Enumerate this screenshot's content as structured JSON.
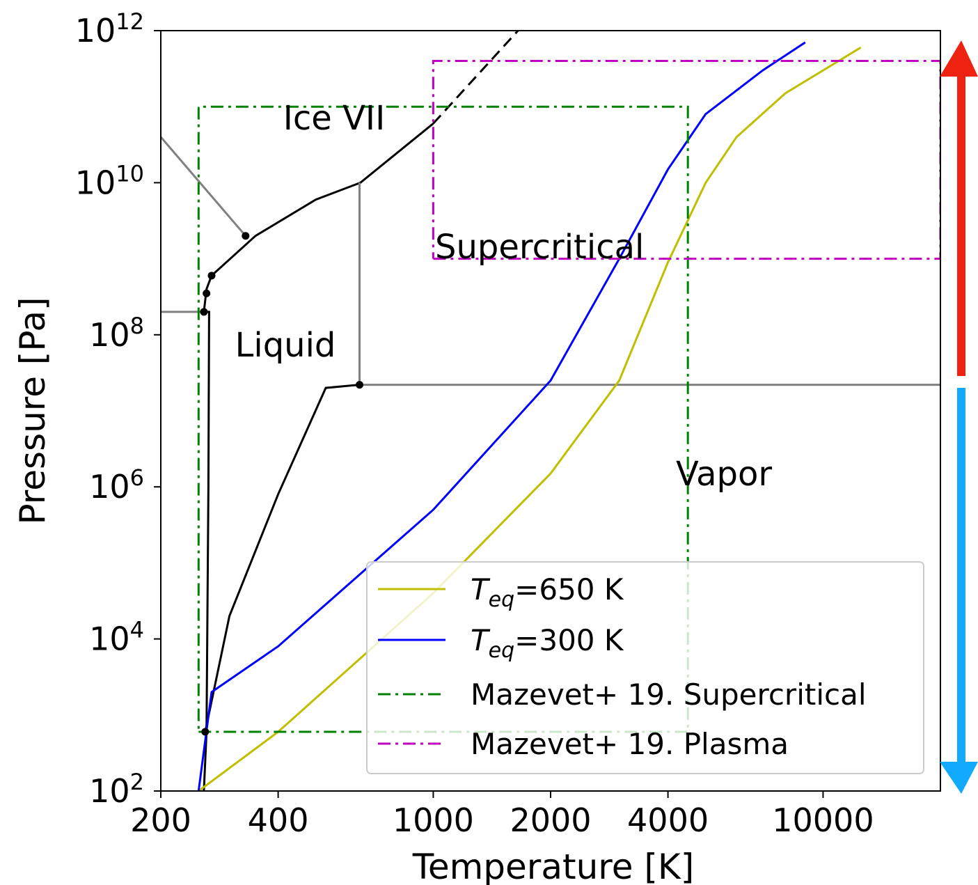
{
  "chart_data": {
    "type": "line",
    "xlabel": "Temperature [K]",
    "ylabel": "Pressure [Pa]",
    "x_scale": "log",
    "y_scale": "log",
    "xlim": [
      200,
      20000
    ],
    "ylim": [
      100,
      1000000000000
    ],
    "grid": false,
    "legend_position": "lower-right",
    "x_ticks": [
      {
        "value": 200,
        "label": "200"
      },
      {
        "value": 400,
        "label": "400"
      },
      {
        "value": 1000,
        "label": "1000"
      },
      {
        "value": 2000,
        "label": "2000"
      },
      {
        "value": 4000,
        "label": "4000"
      },
      {
        "value": 10000,
        "label": "10000"
      }
    ],
    "y_ticks": [
      {
        "value": 100,
        "base": "10",
        "exp": "2"
      },
      {
        "value": 10000,
        "base": "10",
        "exp": "4"
      },
      {
        "value": 1000000,
        "base": "10",
        "exp": "6"
      },
      {
        "value": 100000000,
        "base": "10",
        "exp": "8"
      },
      {
        "value": 10000000000,
        "base": "10",
        "exp": "10"
      },
      {
        "value": 1000000000000,
        "base": "10",
        "exp": "12"
      }
    ],
    "region_labels": [
      {
        "text": "Ice VII",
        "x": 300,
        "y": 50000000000
      },
      {
        "text": "Liquid",
        "x": 305,
        "y": 70000000
      },
      {
        "text": "Supercritical",
        "x": 1000,
        "y": 1000000000
      },
      {
        "text": "Vapor",
        "x": 4000,
        "y": 800000
      },
      {
        "text": "Ice VII",
        "x": 600,
        "y": 100000000000.0
      }
    ],
    "series": [
      {
        "name": "T_eq=650 K",
        "color": "#bfbf00",
        "style": "solid",
        "width": 3,
        "points": [
          [
            250,
            100
          ],
          [
            400,
            600
          ],
          [
            1000,
            40000
          ],
          [
            2000,
            1500000
          ],
          [
            3000,
            25000000
          ],
          [
            4000,
            900000000
          ],
          [
            5000,
            10000000000
          ],
          [
            6000,
            40000000000
          ],
          [
            8000,
            150000000000
          ],
          [
            10000,
            300000000000
          ],
          [
            12500,
            600000000000
          ]
        ]
      },
      {
        "name": "T_eq=300 K",
        "color": "#0000ff",
        "style": "solid",
        "width": 3,
        "points": [
          [
            250,
            100
          ],
          [
            270,
            2000
          ],
          [
            400,
            8000
          ],
          [
            1000,
            500000
          ],
          [
            2000,
            25000000
          ],
          [
            3000,
            1000000000
          ],
          [
            4000,
            15000000000
          ],
          [
            5000,
            80000000000
          ],
          [
            7000,
            300000000000
          ],
          [
            9000,
            700000000000
          ]
        ]
      },
      {
        "name": "Mazevet+ 19. Supercritical",
        "color": "#008000",
        "style": "dashdot",
        "width": 3,
        "points": [
          [
            250,
            600
          ],
          [
            4500,
            600
          ],
          [
            4500,
            100000000000
          ],
          [
            250,
            100000000000
          ],
          [
            250,
            600
          ]
        ]
      },
      {
        "name": "Mazevet+ 19. Plasma",
        "color": "#bf00bf",
        "style": "dashdot",
        "width": 3,
        "points": [
          [
            1000,
            1000000000
          ],
          [
            20000,
            1000000000
          ],
          [
            20000,
            400000000000
          ],
          [
            1000,
            400000000000
          ],
          [
            1000,
            1000000000
          ]
        ]
      }
    ],
    "phase_boundaries": [
      {
        "color": "#000000",
        "style": "solid",
        "points": [
          [
            258,
            100
          ],
          [
            262,
            600
          ],
          [
            265,
            1000000
          ],
          [
            266,
            200000000
          ],
          [
            258,
            200000000
          ],
          [
            262,
            400000000
          ],
          [
            270,
            600000000
          ],
          [
            350,
            2000000000
          ],
          [
            500,
            6000000000
          ],
          [
            650,
            10000000000
          ],
          [
            1000,
            60000000000
          ]
        ]
      },
      {
        "color": "#000000",
        "style": "solid",
        "points": [
          [
            260,
            600
          ],
          [
            300,
            20000
          ],
          [
            400,
            800000
          ],
          [
            530,
            20000000
          ],
          [
            647,
            22000000
          ]
        ]
      },
      {
        "color": "#000000",
        "style": "dashed",
        "points": [
          [
            1000,
            60000000000
          ],
          [
            1650,
            1000000000000
          ]
        ]
      },
      {
        "color": "#808080",
        "style": "solid",
        "points": [
          [
            200,
            40000000000
          ],
          [
            330,
            2000000000
          ]
        ]
      },
      {
        "color": "#808080",
        "style": "solid",
        "points": [
          [
            200,
            200000000
          ],
          [
            258,
            200000000
          ]
        ]
      },
      {
        "color": "#808080",
        "style": "solid",
        "points": [
          [
            647,
            22000000
          ],
          [
            647,
            10000000000
          ]
        ]
      },
      {
        "color": "#808080",
        "style": "solid",
        "points": [
          [
            647,
            22000000
          ],
          [
            20000,
            22000000
          ]
        ]
      }
    ],
    "triple_points": [
      [
        647,
        22000000
      ],
      [
        330,
        2000000000
      ],
      [
        270,
        600000000
      ],
      [
        262,
        350000000
      ],
      [
        258,
        200000000
      ],
      [
        260,
        600
      ]
    ],
    "legend": [
      {
        "label": "=650 K",
        "var": "T",
        "sub": "eq",
        "color": "#bfbf00",
        "style": "solid"
      },
      {
        "label": "=300 K",
        "var": "T",
        "sub": "eq",
        "color": "#0000ff",
        "style": "solid"
      },
      {
        "label": "Mazevet+ 19. Supercritical",
        "color": "#008000",
        "style": "dashdot"
      },
      {
        "label": "Mazevet+ 19. Plasma",
        "color": "#bf00bf",
        "style": "dashdot"
      }
    ]
  }
}
